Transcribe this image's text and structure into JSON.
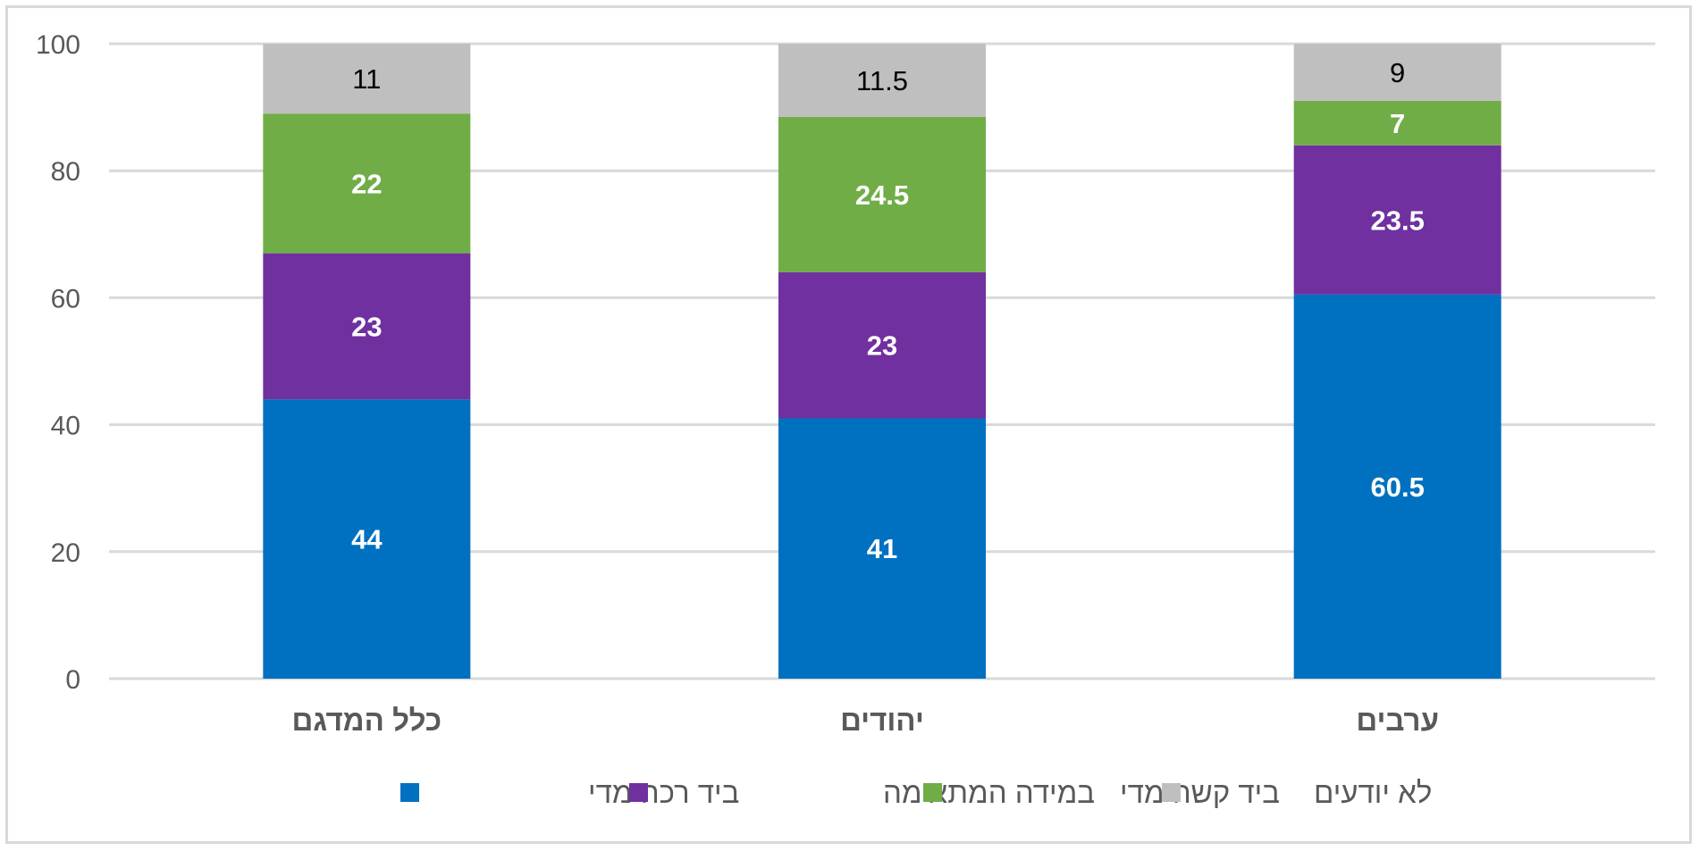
{
  "chart_data": {
    "type": "bar",
    "stacked": true,
    "categories": [
      "כלל המדגם",
      "יהודים",
      "ערבים"
    ],
    "series": [
      {
        "name": "ביד רכה מדי",
        "color": "#0070c0",
        "label_color": "#ffffff",
        "label_bold": true,
        "values": [
          44,
          41,
          60.5
        ]
      },
      {
        "name": "במידה המתאימה",
        "color": "#7030a0",
        "label_color": "#ffffff",
        "label_bold": true,
        "values": [
          23,
          23,
          23.5
        ]
      },
      {
        "name": "ביד קשה מדי",
        "color": "#70ad47",
        "label_color": "#ffffff",
        "label_bold": true,
        "values": [
          22,
          24.5,
          7
        ]
      },
      {
        "name": "לא יודעים",
        "color": "#bfbfbf",
        "label_color": "#000000",
        "label_bold": false,
        "values": [
          11,
          11.5,
          9
        ]
      }
    ],
    "data_labels": [
      [
        "44",
        "41",
        "60.5"
      ],
      [
        "23",
        "23",
        "23.5"
      ],
      [
        "22",
        "24.5",
        "7"
      ],
      [
        "11",
        "11.5",
        "9"
      ]
    ],
    "ylim": [
      0,
      100
    ],
    "yticks": [
      0,
      20,
      40,
      60,
      80,
      100
    ],
    "ytick_labels": [
      "0",
      "20",
      "40",
      "60",
      "80",
      "100"
    ],
    "grid": true,
    "legend_position": "bottom",
    "title": "",
    "xlabel": "",
    "ylabel": ""
  }
}
